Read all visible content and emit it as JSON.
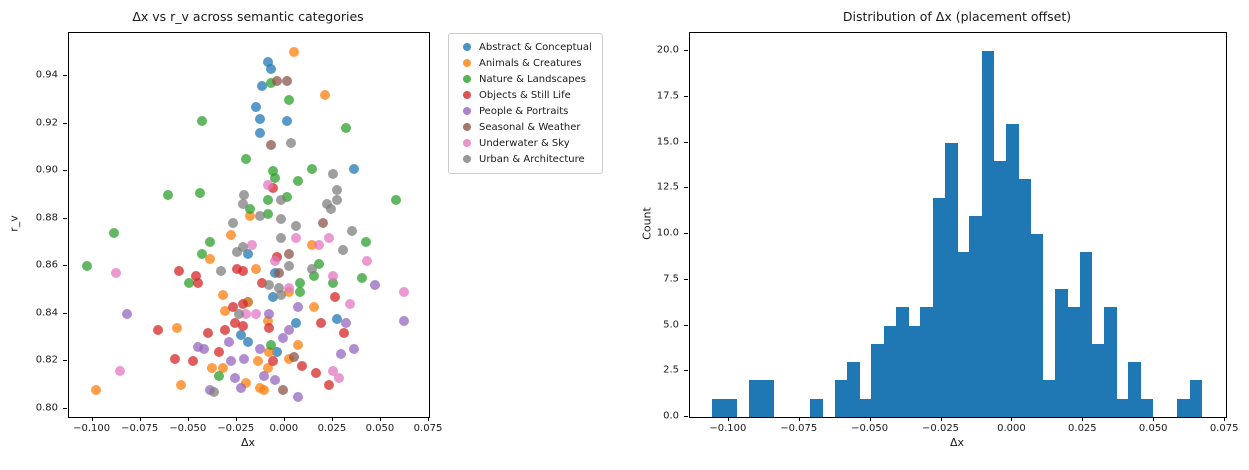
{
  "figure_background": "#ffffff",
  "text_color": "#1a1a1a",
  "chart_data": [
    {
      "type": "scatter",
      "title": "Δx vs r_v across semantic categories",
      "xlabel": "Δx",
      "ylabel": "r_v",
      "xlim": [
        -0.1123,
        0.075
      ],
      "ylim": [
        0.7966,
        0.9581
      ],
      "grid": false,
      "marker_alpha": 0.75,
      "legend_position": "outside-upper-right",
      "xticks": {
        "values": [
          -0.1,
          -0.075,
          -0.05,
          -0.025,
          0.0,
          0.025,
          0.05,
          0.075
        ],
        "labels": [
          "−0.100",
          "−0.075",
          "−0.050",
          "−0.025",
          "0.000",
          "0.025",
          "0.050",
          "0.075"
        ]
      },
      "yticks": {
        "values": [
          0.8,
          0.82,
          0.84,
          0.86,
          0.88,
          0.9,
          0.92,
          0.94
        ],
        "labels": [
          "0.80",
          "0.82",
          "0.84",
          "0.86",
          "0.88",
          "0.90",
          "0.92",
          "0.94"
        ]
      },
      "series": [
        {
          "name": "Abstract & Conceptual",
          "color": "#1f77b4",
          "points": [
            [
              -0.009,
              0.946
            ],
            [
              -0.007,
              0.943
            ],
            [
              -0.012,
              0.936
            ],
            [
              -0.015,
              0.927
            ],
            [
              -0.013,
              0.922
            ],
            [
              0.001,
              0.921
            ],
            [
              -0.013,
              0.916
            ],
            [
              0.036,
              0.901
            ],
            [
              -0.019,
              0.865
            ],
            [
              -0.005,
              0.857
            ],
            [
              -0.019,
              0.845
            ],
            [
              -0.006,
              0.847
            ],
            [
              -0.023,
              0.831
            ],
            [
              -0.019,
              0.828
            ],
            [
              0.027,
              0.838
            ],
            [
              0.006,
              0.836
            ],
            [
              -0.004,
              0.824
            ]
          ]
        },
        {
          "name": "Animals & Creatures",
          "color": "#ff7f0e",
          "points": [
            [
              0.005,
              0.95
            ],
            [
              0.021,
              0.932
            ],
            [
              -0.028,
              0.873
            ],
            [
              -0.018,
              0.881
            ],
            [
              -0.039,
              0.863
            ],
            [
              0.014,
              0.869
            ],
            [
              -0.015,
              0.859
            ],
            [
              -0.032,
              0.848
            ],
            [
              -0.031,
              0.841
            ],
            [
              -0.056,
              0.834
            ],
            [
              -0.038,
              0.817
            ],
            [
              -0.032,
              0.817
            ],
            [
              -0.098,
              0.808
            ],
            [
              -0.054,
              0.81
            ],
            [
              0.002,
              0.849
            ],
            [
              0.015,
              0.843
            ],
            [
              -0.009,
              0.837
            ],
            [
              0.007,
              0.827
            ],
            [
              -0.008,
              0.824
            ],
            [
              0.002,
              0.821
            ],
            [
              -0.014,
              0.82
            ],
            [
              -0.009,
              0.817
            ],
            [
              -0.013,
              0.809
            ],
            [
              -0.011,
              0.808
            ],
            [
              -0.019,
              0.845
            ],
            [
              -0.02,
              0.811
            ]
          ]
        },
        {
          "name": "Nature & Landscapes",
          "color": "#2ca02c",
          "points": [
            [
              -0.043,
              0.921
            ],
            [
              -0.007,
              0.937
            ],
            [
              0.002,
              0.93
            ],
            [
              0.032,
              0.918
            ],
            [
              -0.02,
              0.905
            ],
            [
              -0.061,
              0.89
            ],
            [
              -0.044,
              0.891
            ],
            [
              -0.089,
              0.874
            ],
            [
              -0.039,
              0.87
            ],
            [
              -0.043,
              0.865
            ],
            [
              -0.05,
              0.853
            ],
            [
              -0.103,
              0.86
            ],
            [
              -0.006,
              0.9
            ],
            [
              0.014,
              0.901
            ],
            [
              -0.005,
              0.897
            ],
            [
              0.007,
              0.896
            ],
            [
              0.001,
              0.889
            ],
            [
              -0.009,
              0.888
            ],
            [
              0.058,
              0.888
            ],
            [
              -0.018,
              0.884
            ],
            [
              -0.009,
              0.882
            ],
            [
              0.042,
              0.87
            ],
            [
              0.018,
              0.861
            ],
            [
              0.015,
              0.856
            ],
            [
              0.04,
              0.855
            ],
            [
              -0.034,
              0.814
            ],
            [
              -0.007,
              0.827
            ],
            [
              0.008,
              0.853
            ],
            [
              0.025,
              0.853
            ],
            [
              0.008,
              0.849
            ]
          ]
        },
        {
          "name": "Objects & Still Life",
          "color": "#d62728",
          "points": [
            [
              -0.006,
              0.893
            ],
            [
              -0.055,
              0.858
            ],
            [
              -0.046,
              0.856
            ],
            [
              -0.045,
              0.853
            ],
            [
              -0.025,
              0.859
            ],
            [
              -0.022,
              0.858
            ],
            [
              -0.004,
              0.864
            ],
            [
              -0.027,
              0.843
            ],
            [
              -0.022,
              0.844
            ],
            [
              -0.026,
              0.836
            ],
            [
              -0.022,
              0.835
            ],
            [
              -0.066,
              0.833
            ],
            [
              -0.04,
              0.832
            ],
            [
              -0.031,
              0.833
            ],
            [
              -0.034,
              0.824
            ],
            [
              -0.057,
              0.821
            ],
            [
              -0.048,
              0.82
            ],
            [
              -0.012,
              0.853
            ],
            [
              0.026,
              0.847
            ],
            [
              0.019,
              0.836
            ],
            [
              0.031,
              0.832
            ],
            [
              -0.008,
              0.834
            ],
            [
              -0.006,
              0.82
            ],
            [
              0.009,
              0.818
            ],
            [
              0.016,
              0.815
            ],
            [
              0.023,
              0.81
            ]
          ]
        },
        {
          "name": "People & Portraits",
          "color": "#9467bd",
          "points": [
            [
              0.047,
              0.852
            ],
            [
              -0.082,
              0.84
            ],
            [
              -0.029,
              0.828
            ],
            [
              -0.045,
              0.826
            ],
            [
              -0.042,
              0.825
            ],
            [
              -0.028,
              0.82
            ],
            [
              -0.021,
              0.821
            ],
            [
              -0.026,
              0.813
            ],
            [
              -0.039,
              0.808
            ],
            [
              -0.023,
              0.809
            ],
            [
              -0.008,
              0.84
            ],
            [
              0.007,
              0.843
            ],
            [
              0.032,
              0.836
            ],
            [
              0.002,
              0.833
            ],
            [
              -0.001,
              0.83
            ],
            [
              -0.013,
              0.825
            ],
            [
              0.036,
              0.825
            ],
            [
              0.029,
              0.823
            ],
            [
              -0.011,
              0.814
            ],
            [
              -0.005,
              0.812
            ],
            [
              0.007,
              0.805
            ],
            [
              0.062,
              0.837
            ]
          ]
        },
        {
          "name": "Seasonal & Weather",
          "color": "#8c564b",
          "points": [
            [
              -0.004,
              0.938
            ],
            [
              0.001,
              0.938
            ],
            [
              -0.007,
              0.911
            ],
            [
              0.02,
              0.878
            ],
            [
              0.002,
              0.865
            ],
            [
              -0.003,
              0.857
            ],
            [
              0.005,
              0.822
            ],
            [
              -0.001,
              0.808
            ]
          ]
        },
        {
          "name": "Underwater & Sky",
          "color": "#e377c2",
          "points": [
            [
              -0.088,
              0.857
            ],
            [
              -0.009,
              0.894
            ],
            [
              0.006,
              0.872
            ],
            [
              0.023,
              0.872
            ],
            [
              -0.017,
              0.869
            ],
            [
              0.018,
              0.869
            ],
            [
              -0.005,
              0.862
            ],
            [
              0.043,
              0.862
            ],
            [
              0.025,
              0.856
            ],
            [
              -0.086,
              0.816
            ],
            [
              -0.02,
              0.84
            ],
            [
              -0.015,
              0.84
            ],
            [
              0.002,
              0.851
            ],
            [
              0.062,
              0.849
            ],
            [
              0.034,
              0.844
            ],
            [
              0.025,
              0.816
            ],
            [
              0.028,
              0.813
            ]
          ]
        },
        {
          "name": "Urban & Architecture",
          "color": "#7f7f7f",
          "points": [
            [
              0.003,
              0.912
            ],
            [
              -0.021,
              0.89
            ],
            [
              -0.022,
              0.886
            ],
            [
              -0.027,
              0.878
            ],
            [
              0.025,
              0.899
            ],
            [
              0.027,
              0.892
            ],
            [
              0.027,
              0.888
            ],
            [
              -0.002,
              0.888
            ],
            [
              0.022,
              0.886
            ],
            [
              0.024,
              0.884
            ],
            [
              -0.013,
              0.881
            ],
            [
              -0.002,
              0.88
            ],
            [
              0.006,
              0.877
            ],
            [
              0.035,
              0.875
            ],
            [
              -0.002,
              0.872
            ],
            [
              -0.025,
              0.866
            ],
            [
              -0.022,
              0.868
            ],
            [
              -0.033,
              0.858
            ],
            [
              0.002,
              0.86
            ],
            [
              0.03,
              0.867
            ],
            [
              0.014,
              0.859
            ],
            [
              -0.024,
              0.84
            ],
            [
              -0.037,
              0.807
            ],
            [
              -0.008,
              0.852
            ],
            [
              -0.003,
              0.851
            ],
            [
              -0.002,
              0.848
            ]
          ]
        }
      ]
    },
    {
      "type": "histogram",
      "title": "Distribution of Δx (placement offset)",
      "xlabel": "Δx",
      "ylabel": "Count",
      "xlim": [
        -0.1137,
        0.0753
      ],
      "ylim": [
        0,
        21
      ],
      "grid": false,
      "bar_color": "#1f77b4",
      "bin_start": -0.1058,
      "bin_width": 0.004315,
      "counts": [
        1,
        1,
        0,
        2,
        2,
        0,
        0,
        0,
        1,
        0,
        2,
        3,
        1,
        4,
        5,
        6,
        5,
        6,
        12,
        15,
        9,
        11,
        20,
        14,
        16,
        13,
        10,
        2,
        7,
        6,
        9,
        4,
        6,
        1,
        3,
        1,
        0,
        0,
        1,
        2
      ],
      "xticks": {
        "values": [
          -0.1,
          -0.075,
          -0.05,
          -0.025,
          0.0,
          0.025,
          0.05,
          0.075
        ],
        "labels": [
          "−0.100",
          "−0.075",
          "−0.050",
          "−0.025",
          "0.000",
          "0.025",
          "0.050",
          "0.075"
        ]
      },
      "yticks": {
        "values": [
          0.0,
          2.5,
          5.0,
          7.5,
          10.0,
          12.5,
          15.0,
          17.5,
          20.0
        ],
        "labels": [
          "0.0",
          "2.5",
          "5.0",
          "7.5",
          "10.0",
          "12.5",
          "15.0",
          "17.5",
          "20.0"
        ]
      }
    }
  ]
}
